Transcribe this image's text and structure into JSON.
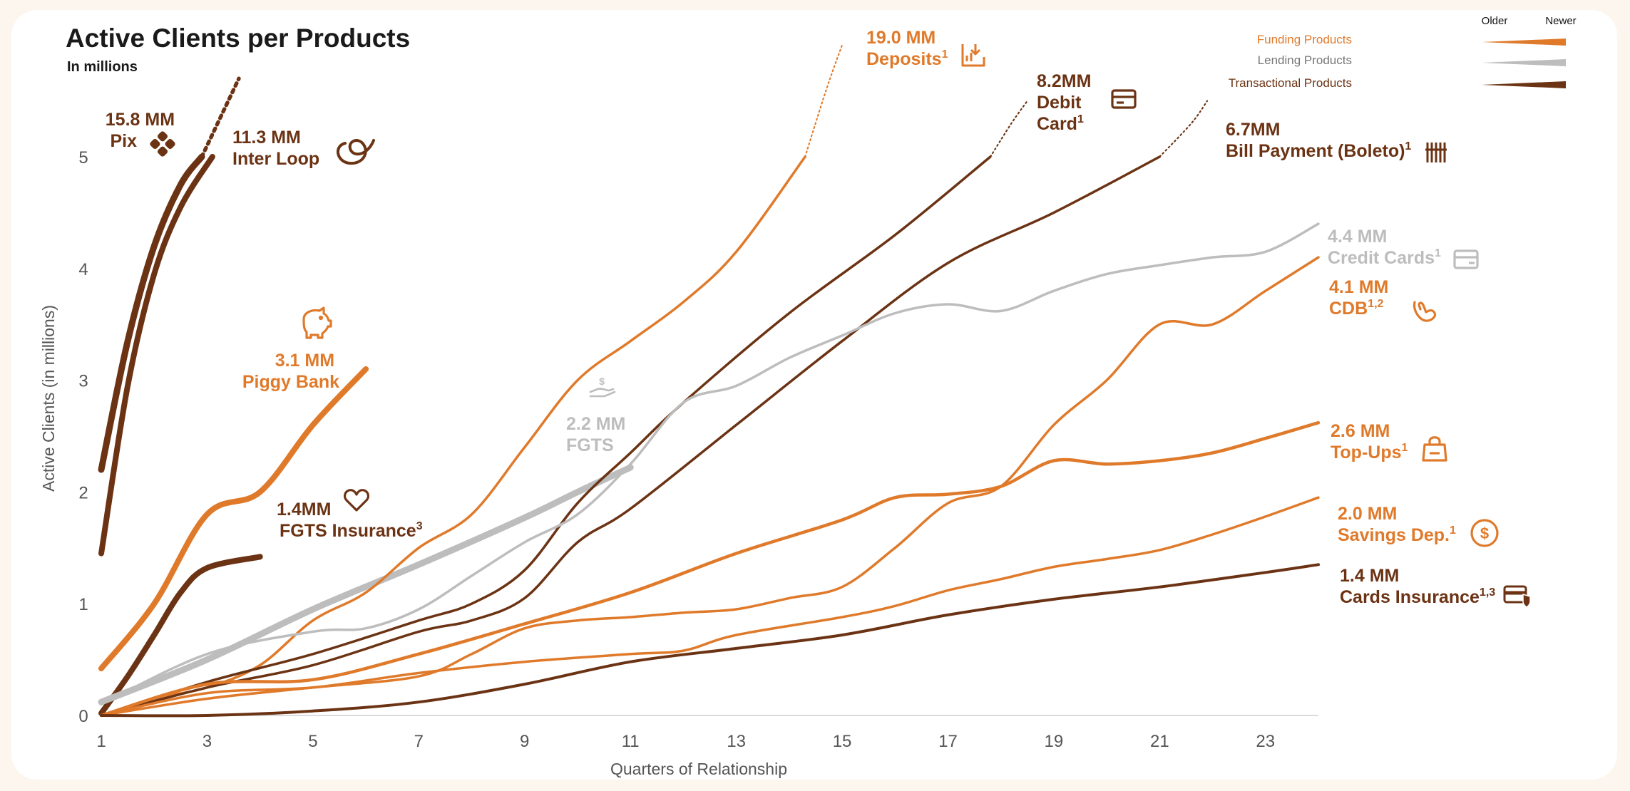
{
  "header": {
    "title": "Active Clients per Products",
    "subtitle": "In millions"
  },
  "legend": {
    "older_label": "Older",
    "newer_label": "Newer",
    "items": [
      {
        "label": "Funding Products",
        "color": "#E07A2B"
      },
      {
        "label": "Lending Products",
        "color": "#BDBDBD"
      },
      {
        "label": "Transactional Products",
        "color": "#6B3314"
      }
    ]
  },
  "colors": {
    "funding": "#E07A2B",
    "lending": "#BDBDBD",
    "transactional": "#6B3314",
    "axis_text": "#555555"
  },
  "chart_data": {
    "type": "line",
    "title": "Active Clients per Products",
    "subtitle": "In millions",
    "xlabel": "Quarters  of Relationship",
    "ylabel": "Active Clients (in millions)",
    "xlim": [
      1,
      24
    ],
    "ylim": [
      0,
      5.5
    ],
    "x_ticks": [
      1,
      3,
      5,
      7,
      9,
      11,
      13,
      15,
      17,
      19,
      21,
      23
    ],
    "y_ticks": [
      0,
      1,
      2,
      3,
      4,
      5
    ],
    "grid": false,
    "legend_position": "top-right",
    "series": [
      {
        "name": "Pix",
        "category": "transactional",
        "value_label": "15.8 MM",
        "icon": "pix-icon",
        "points": [
          [
            1,
            2.2
          ],
          [
            1.5,
            3.35
          ],
          [
            2,
            4.2
          ],
          [
            2.5,
            4.75
          ],
          [
            2.9,
            5.0
          ]
        ],
        "continues": true
      },
      {
        "name": "Inter Loop",
        "category": "transactional",
        "value_label": "11.3 MM",
        "icon": "loop-icon",
        "points": [
          [
            1,
            1.45
          ],
          [
            1.5,
            2.95
          ],
          [
            2,
            3.95
          ],
          [
            2.5,
            4.55
          ],
          [
            3.1,
            5.0
          ]
        ],
        "continues": true
      },
      {
        "name": "Piggy Bank",
        "category": "funding",
        "value_label": "3.1 MM",
        "icon": "piggy-bank-icon",
        "points": [
          [
            1,
            0.42
          ],
          [
            2,
            1.0
          ],
          [
            3,
            1.8
          ],
          [
            4,
            2.0
          ],
          [
            5,
            2.6
          ],
          [
            6,
            3.1
          ]
        ]
      },
      {
        "name": "FGTS Insurance",
        "category": "transactional",
        "value_label": "1.4MM",
        "sup": "3",
        "icon": "heart-icon",
        "points": [
          [
            1,
            0.02
          ],
          [
            1.5,
            0.35
          ],
          [
            2,
            0.72
          ],
          [
            2.5,
            1.1
          ],
          [
            3,
            1.32
          ],
          [
            4,
            1.42
          ]
        ]
      },
      {
        "name": "FGTS",
        "category": "lending",
        "value_label": "2.2 MM",
        "icon": "hand-coin-icon",
        "points": [
          [
            1,
            0.12
          ],
          [
            3,
            0.5
          ],
          [
            5,
            0.95
          ],
          [
            7,
            1.35
          ],
          [
            9,
            1.77
          ],
          [
            10,
            2.0
          ],
          [
            11,
            2.22
          ]
        ]
      },
      {
        "name": "Deposits",
        "category": "funding",
        "value_label": "19.0 MM",
        "sup": "1",
        "icon": "deposit-icon",
        "points": [
          [
            1,
            0.0
          ],
          [
            2,
            0.15
          ],
          [
            3,
            0.25
          ],
          [
            4,
            0.45
          ],
          [
            5,
            0.85
          ],
          [
            6,
            1.1
          ],
          [
            7,
            1.5
          ],
          [
            8,
            1.8
          ],
          [
            9,
            2.4
          ],
          [
            10,
            3.0
          ],
          [
            11,
            3.35
          ],
          [
            12,
            3.7
          ],
          [
            13,
            4.15
          ],
          [
            14.3,
            5.0
          ]
        ],
        "continues": true
      },
      {
        "name": "Debit Card",
        "category": "transactional",
        "value_label": "8.2MM",
        "sup": "1",
        "icon": "debit-card-icon",
        "points": [
          [
            1,
            0.0
          ],
          [
            3,
            0.3
          ],
          [
            5,
            0.55
          ],
          [
            7,
            0.85
          ],
          [
            8,
            1.0
          ],
          [
            9,
            1.3
          ],
          [
            10,
            1.9
          ],
          [
            11,
            2.35
          ],
          [
            12,
            2.8
          ],
          [
            14,
            3.6
          ],
          [
            16,
            4.3
          ],
          [
            17.8,
            5.0
          ]
        ],
        "continues": true
      },
      {
        "name": "Bill Payment (Boleto)",
        "category": "transactional",
        "value_label": "6.7MM",
        "sup": "1",
        "icon": "barcode-icon",
        "points": [
          [
            1,
            0.0
          ],
          [
            3,
            0.25
          ],
          [
            5,
            0.45
          ],
          [
            7,
            0.75
          ],
          [
            8,
            0.85
          ],
          [
            9,
            1.05
          ],
          [
            10,
            1.55
          ],
          [
            11,
            1.85
          ],
          [
            13,
            2.6
          ],
          [
            15,
            3.35
          ],
          [
            17,
            4.05
          ],
          [
            19,
            4.5
          ],
          [
            21,
            5.0
          ]
        ],
        "continues": true
      },
      {
        "name": "Credit Cards",
        "category": "lending",
        "value_label": "4.4 MM",
        "sup": "1",
        "icon": "credit-card-icon",
        "points": [
          [
            1,
            0.1
          ],
          [
            3,
            0.55
          ],
          [
            5,
            0.75
          ],
          [
            6,
            0.78
          ],
          [
            7,
            0.95
          ],
          [
            8,
            1.25
          ],
          [
            9,
            1.55
          ],
          [
            10,
            1.8
          ],
          [
            11,
            2.25
          ],
          [
            12,
            2.8
          ],
          [
            13,
            2.95
          ],
          [
            14,
            3.2
          ],
          [
            15,
            3.4
          ],
          [
            16,
            3.6
          ],
          [
            17,
            3.68
          ],
          [
            18,
            3.62
          ],
          [
            19,
            3.8
          ],
          [
            20,
            3.95
          ],
          [
            21,
            4.03
          ],
          [
            22,
            4.1
          ],
          [
            23,
            4.15
          ],
          [
            24,
            4.4
          ]
        ]
      },
      {
        "name": "CDB",
        "category": "funding",
        "value_label": "4.1 MM",
        "sup": "1,2",
        "icon": "cdb-hand-icon",
        "points": [
          [
            1,
            0.0
          ],
          [
            3,
            0.15
          ],
          [
            5,
            0.25
          ],
          [
            7,
            0.35
          ],
          [
            8,
            0.55
          ],
          [
            9,
            0.78
          ],
          [
            10,
            0.85
          ],
          [
            11,
            0.88
          ],
          [
            12,
            0.92
          ],
          [
            13,
            0.95
          ],
          [
            14,
            1.05
          ],
          [
            15,
            1.15
          ],
          [
            16,
            1.5
          ],
          [
            17,
            1.9
          ],
          [
            18,
            2.05
          ],
          [
            19,
            2.6
          ],
          [
            20,
            3.0
          ],
          [
            21,
            3.5
          ],
          [
            22,
            3.5
          ],
          [
            23,
            3.8
          ],
          [
            24,
            4.1
          ]
        ]
      },
      {
        "name": "Top-Ups",
        "category": "funding",
        "value_label": "2.6 MM",
        "sup": "1",
        "icon": "shopping-bag-icon",
        "points": [
          [
            1,
            0.0
          ],
          [
            3,
            0.28
          ],
          [
            5,
            0.32
          ],
          [
            7,
            0.55
          ],
          [
            9,
            0.82
          ],
          [
            11,
            1.1
          ],
          [
            13,
            1.45
          ],
          [
            15,
            1.75
          ],
          [
            16,
            1.95
          ],
          [
            17,
            1.98
          ],
          [
            18,
            2.05
          ],
          [
            19,
            2.28
          ],
          [
            20,
            2.25
          ],
          [
            21,
            2.28
          ],
          [
            22,
            2.35
          ],
          [
            23,
            2.48
          ],
          [
            24,
            2.62
          ]
        ]
      },
      {
        "name": "Savings Dep.",
        "category": "funding",
        "value_label": "2.0 MM",
        "sup": "1",
        "icon": "dollar-circle-icon",
        "points": [
          [
            1,
            0.0
          ],
          [
            3,
            0.2
          ],
          [
            5,
            0.25
          ],
          [
            7,
            0.38
          ],
          [
            9,
            0.48
          ],
          [
            11,
            0.55
          ],
          [
            12,
            0.58
          ],
          [
            13,
            0.72
          ],
          [
            15,
            0.88
          ],
          [
            16,
            0.98
          ],
          [
            17,
            1.12
          ],
          [
            18,
            1.22
          ],
          [
            19,
            1.33
          ],
          [
            20,
            1.4
          ],
          [
            21,
            1.48
          ],
          [
            22,
            1.62
          ],
          [
            23,
            1.78
          ],
          [
            24,
            1.95
          ]
        ]
      },
      {
        "name": "Cards Insurance",
        "category": "transactional",
        "value_label": "1.4 MM",
        "sup": "1,3",
        "icon": "card-shield-icon",
        "points": [
          [
            1,
            0.0
          ],
          [
            3,
            0.0
          ],
          [
            5,
            0.04
          ],
          [
            7,
            0.12
          ],
          [
            9,
            0.28
          ],
          [
            11,
            0.48
          ],
          [
            13,
            0.6
          ],
          [
            15,
            0.72
          ],
          [
            17,
            0.9
          ],
          [
            19,
            1.04
          ],
          [
            21,
            1.15
          ],
          [
            23,
            1.28
          ],
          [
            24,
            1.35
          ]
        ]
      }
    ],
    "annotations": [
      {
        "series": "Pix",
        "value": "15.8 MM",
        "label": "Pix",
        "sup": ""
      },
      {
        "series": "Inter Loop",
        "value": "11.3 MM",
        "label": "Inter Loop",
        "sup": ""
      },
      {
        "series": "Piggy Bank",
        "value": "3.1 MM",
        "label": "Piggy Bank",
        "sup": ""
      },
      {
        "series": "FGTS Insurance",
        "value": "1.4MM",
        "label": "FGTS Insurance",
        "sup": "3"
      },
      {
        "series": "FGTS",
        "value": "2.2 MM",
        "label": "FGTS",
        "sup": ""
      },
      {
        "series": "Deposits",
        "value": "19.0 MM",
        "label": "Deposits",
        "sup": "1"
      },
      {
        "series": "Debit Card",
        "value": "8.2MM",
        "label": "Debit",
        "label2": "Card",
        "sup": "1"
      },
      {
        "series": "Bill Payment (Boleto)",
        "value": "6.7MM",
        "label": "Bill Payment (Boleto)",
        "sup": "1"
      },
      {
        "series": "Credit Cards",
        "value": "4.4 MM",
        "label": "Credit Cards",
        "sup": "1"
      },
      {
        "series": "CDB",
        "value": "4.1 MM",
        "label": "CDB",
        "sup": "1,2"
      },
      {
        "series": "Top-Ups",
        "value": "2.6 MM",
        "label": "Top-Ups",
        "sup": "1"
      },
      {
        "series": "Savings Dep.",
        "value": "2.0 MM",
        "label": "Savings Dep.",
        "sup": "1"
      },
      {
        "series": "Cards Insurance",
        "value": "1.4 MM",
        "label": "Cards Insurance",
        "sup": "1,3"
      }
    ]
  }
}
